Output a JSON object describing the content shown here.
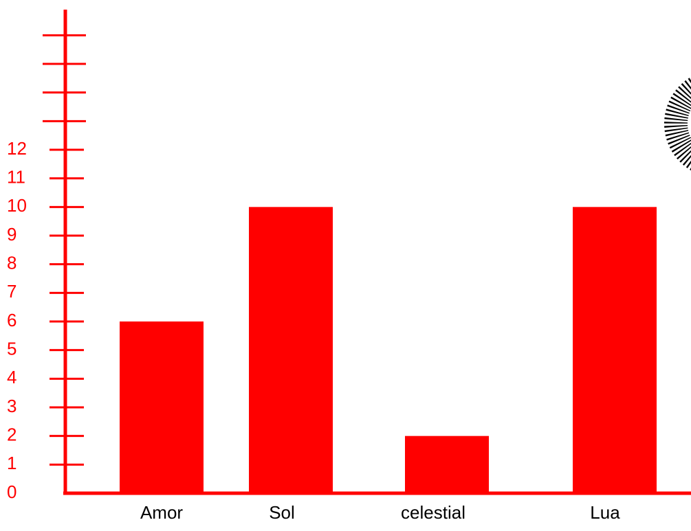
{
  "chart_data": {
    "type": "bar",
    "categories": [
      "Amor",
      "Sol",
      "celestial",
      "Lua"
    ],
    "values": [
      6,
      10,
      2,
      10
    ],
    "color": "#ff0000",
    "ylim": [
      0,
      16.8
    ],
    "yticks": [
      0,
      1,
      2,
      3,
      4,
      5,
      6,
      7,
      8,
      9,
      10,
      11,
      12
    ],
    "minor_yticks": [
      13,
      14,
      15,
      16
    ]
  }
}
